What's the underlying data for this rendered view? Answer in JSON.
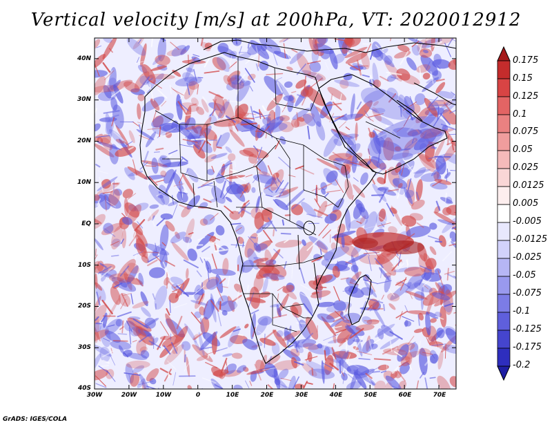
{
  "title": "Vertical velocity [m/s] at 200hPa, VT: 2020012912",
  "credit": "GrADS: IGES/COLA",
  "y_axis_labels": [
    "40N",
    "30N",
    "20N",
    "10N",
    "EQ",
    "10S",
    "20S",
    "30S",
    "40S"
  ],
  "x_axis_labels": [
    "30W",
    "20W",
    "10W",
    "0",
    "10E",
    "20E",
    "30E",
    "40E",
    "50E",
    "60E",
    "70E"
  ],
  "colorbar": {
    "labels": [
      "0.175",
      "0.15",
      "0.125",
      "0.1",
      "0.075",
      "0.05",
      "0.025",
      "0.0125",
      "0.005",
      "-0.005",
      "-0.0125",
      "-0.025",
      "-0.05",
      "-0.075",
      "-0.1",
      "-0.125",
      "-0.175",
      "-0.2"
    ],
    "colors": [
      "#a51a1a",
      "#c42c2c",
      "#d84444",
      "#e36464",
      "#ea8181",
      "#f09d9d",
      "#f5baba",
      "#f9d6d6",
      "#fdeeee",
      "#ffffff",
      "#e8e8fd",
      "#d2d2fb",
      "#b6b6f5",
      "#9999ee",
      "#7c7ce6",
      "#5f5fdc",
      "#4545ce",
      "#2e2ebe",
      "#1f1fa4"
    ]
  },
  "map": {
    "lon_range": [
      -30,
      75
    ],
    "lat_range": [
      -40,
      45
    ],
    "features": [
      "Africa",
      "Arabian Peninsula",
      "Madagascar",
      "Mediterranean Sea",
      "Red Sea"
    ]
  },
  "style": {
    "red": "#d24848",
    "blue": "#5a5ae0",
    "white": "#ffffff"
  }
}
